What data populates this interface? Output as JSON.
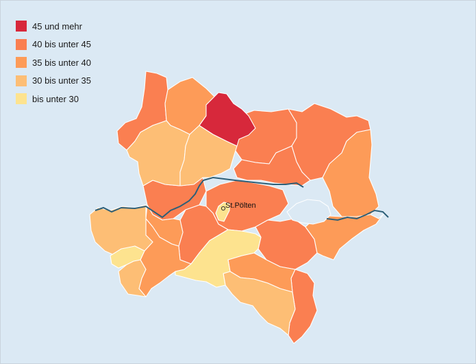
{
  "legend": {
    "items": [
      {
        "label": "45 und mehr",
        "color": "#d7283b"
      },
      {
        "label": "40 bis unter 45",
        "color": "#fa7f51"
      },
      {
        "label": "35 bis unter 40",
        "color": "#fd9b58"
      },
      {
        "label": "30 bis unter 35",
        "color": "#fdbe75"
      },
      {
        "label": "bis unter 30",
        "color": "#fde38f"
      }
    ]
  },
  "map": {
    "background": "#dbe9f4",
    "river_color": "#2d5f78",
    "lake_color": "#dbe9f4",
    "city": {
      "name": "St.Pölten"
    }
  }
}
